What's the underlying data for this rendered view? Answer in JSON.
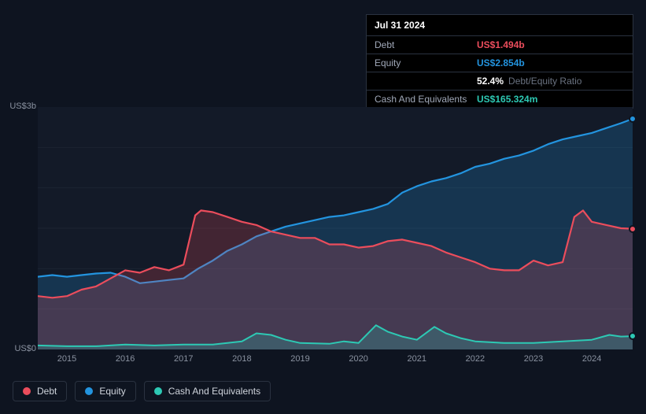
{
  "tooltip": {
    "date": "Jul 31 2024",
    "rows": [
      {
        "label": "Debt",
        "value": "US$1.494b",
        "color": "#eb4d5c"
      },
      {
        "label": "Equity",
        "value": "US$2.854b",
        "color": "#2394df"
      },
      {
        "label": "",
        "value": "52.4%",
        "extra": "Debt/Equity Ratio",
        "color": "#ffffff"
      },
      {
        "label": "Cash And Equivalents",
        "value": "US$165.324m",
        "color": "#2dc9b4"
      }
    ]
  },
  "chart": {
    "type": "area",
    "background_color": "#131a28",
    "page_background": "#0e1420",
    "grid_color": "#1c2432",
    "ylim": [
      0,
      3
    ],
    "y_unit": "b",
    "y_ticks": [
      {
        "v": 3,
        "label": "US$3b"
      },
      {
        "v": 0,
        "label": "US$0"
      }
    ],
    "x_start": 2014.5,
    "x_end": 2024.7,
    "x_ticks": [
      2015,
      2016,
      2017,
      2018,
      2019,
      2020,
      2021,
      2022,
      2023,
      2024
    ],
    "series": [
      {
        "name": "Equity",
        "color": "#2394df",
        "fill_opacity": 0.22,
        "line_width": 2.2,
        "points": [
          [
            2014.5,
            0.9
          ],
          [
            2014.75,
            0.92
          ],
          [
            2015.0,
            0.9
          ],
          [
            2015.25,
            0.92
          ],
          [
            2015.5,
            0.94
          ],
          [
            2015.75,
            0.95
          ],
          [
            2016.0,
            0.9
          ],
          [
            2016.25,
            0.82
          ],
          [
            2016.5,
            0.84
          ],
          [
            2016.75,
            0.86
          ],
          [
            2017.0,
            0.88
          ],
          [
            2017.25,
            1.0
          ],
          [
            2017.5,
            1.1
          ],
          [
            2017.75,
            1.22
          ],
          [
            2018.0,
            1.3
          ],
          [
            2018.25,
            1.4
          ],
          [
            2018.5,
            1.46
          ],
          [
            2018.75,
            1.52
          ],
          [
            2019.0,
            1.56
          ],
          [
            2019.25,
            1.6
          ],
          [
            2019.5,
            1.64
          ],
          [
            2019.75,
            1.66
          ],
          [
            2020.0,
            1.7
          ],
          [
            2020.25,
            1.74
          ],
          [
            2020.5,
            1.8
          ],
          [
            2020.75,
            1.94
          ],
          [
            2021.0,
            2.02
          ],
          [
            2021.25,
            2.08
          ],
          [
            2021.5,
            2.12
          ],
          [
            2021.75,
            2.18
          ],
          [
            2022.0,
            2.26
          ],
          [
            2022.25,
            2.3
          ],
          [
            2022.5,
            2.36
          ],
          [
            2022.75,
            2.4
          ],
          [
            2023.0,
            2.46
          ],
          [
            2023.25,
            2.54
          ],
          [
            2023.5,
            2.6
          ],
          [
            2023.75,
            2.64
          ],
          [
            2024.0,
            2.68
          ],
          [
            2024.25,
            2.74
          ],
          [
            2024.5,
            2.8
          ],
          [
            2024.7,
            2.854
          ]
        ]
      },
      {
        "name": "Debt",
        "color": "#eb4d5c",
        "fill_opacity": 0.22,
        "line_width": 2.2,
        "points": [
          [
            2014.5,
            0.66
          ],
          [
            2014.75,
            0.64
          ],
          [
            2015.0,
            0.66
          ],
          [
            2015.25,
            0.74
          ],
          [
            2015.5,
            0.78
          ],
          [
            2015.75,
            0.88
          ],
          [
            2016.0,
            0.98
          ],
          [
            2016.25,
            0.95
          ],
          [
            2016.5,
            1.02
          ],
          [
            2016.75,
            0.98
          ],
          [
            2017.0,
            1.05
          ],
          [
            2017.2,
            1.66
          ],
          [
            2017.3,
            1.72
          ],
          [
            2017.5,
            1.7
          ],
          [
            2017.75,
            1.64
          ],
          [
            2018.0,
            1.58
          ],
          [
            2018.25,
            1.54
          ],
          [
            2018.5,
            1.46
          ],
          [
            2018.75,
            1.42
          ],
          [
            2019.0,
            1.38
          ],
          [
            2019.25,
            1.38
          ],
          [
            2019.5,
            1.3
          ],
          [
            2019.75,
            1.3
          ],
          [
            2020.0,
            1.26
          ],
          [
            2020.25,
            1.28
          ],
          [
            2020.5,
            1.34
          ],
          [
            2020.75,
            1.36
          ],
          [
            2021.0,
            1.32
          ],
          [
            2021.25,
            1.28
          ],
          [
            2021.5,
            1.2
          ],
          [
            2021.75,
            1.14
          ],
          [
            2022.0,
            1.08
          ],
          [
            2022.25,
            1.0
          ],
          [
            2022.5,
            0.98
          ],
          [
            2022.75,
            0.98
          ],
          [
            2023.0,
            1.1
          ],
          [
            2023.25,
            1.04
          ],
          [
            2023.5,
            1.08
          ],
          [
            2023.7,
            1.64
          ],
          [
            2023.85,
            1.72
          ],
          [
            2024.0,
            1.58
          ],
          [
            2024.25,
            1.54
          ],
          [
            2024.5,
            1.5
          ],
          [
            2024.7,
            1.494
          ]
        ]
      },
      {
        "name": "Cash And Equivalents",
        "color": "#2dc9b4",
        "fill_opacity": 0.22,
        "line_width": 2.0,
        "points": [
          [
            2014.5,
            0.05
          ],
          [
            2015.0,
            0.04
          ],
          [
            2015.5,
            0.04
          ],
          [
            2016.0,
            0.06
          ],
          [
            2016.5,
            0.05
          ],
          [
            2017.0,
            0.06
          ],
          [
            2017.5,
            0.06
          ],
          [
            2018.0,
            0.1
          ],
          [
            2018.25,
            0.2
          ],
          [
            2018.5,
            0.18
          ],
          [
            2018.75,
            0.12
          ],
          [
            2019.0,
            0.08
          ],
          [
            2019.5,
            0.07
          ],
          [
            2019.75,
            0.1
          ],
          [
            2020.0,
            0.08
          ],
          [
            2020.3,
            0.3
          ],
          [
            2020.5,
            0.22
          ],
          [
            2020.75,
            0.16
          ],
          [
            2021.0,
            0.12
          ],
          [
            2021.3,
            0.28
          ],
          [
            2021.5,
            0.2
          ],
          [
            2021.75,
            0.14
          ],
          [
            2022.0,
            0.1
          ],
          [
            2022.5,
            0.08
          ],
          [
            2023.0,
            0.08
          ],
          [
            2023.5,
            0.1
          ],
          [
            2024.0,
            0.12
          ],
          [
            2024.3,
            0.18
          ],
          [
            2024.5,
            0.16
          ],
          [
            2024.7,
            0.165
          ]
        ]
      }
    ],
    "end_markers": [
      {
        "x": 2024.7,
        "y": 2.854,
        "color": "#2394df"
      },
      {
        "x": 2024.7,
        "y": 1.494,
        "color": "#eb4d5c"
      },
      {
        "x": 2024.7,
        "y": 0.165,
        "color": "#2dc9b4"
      }
    ]
  },
  "legend": [
    {
      "label": "Debt",
      "color": "#eb4d5c"
    },
    {
      "label": "Equity",
      "color": "#2394df"
    },
    {
      "label": "Cash And Equivalents",
      "color": "#2dc9b4"
    }
  ]
}
